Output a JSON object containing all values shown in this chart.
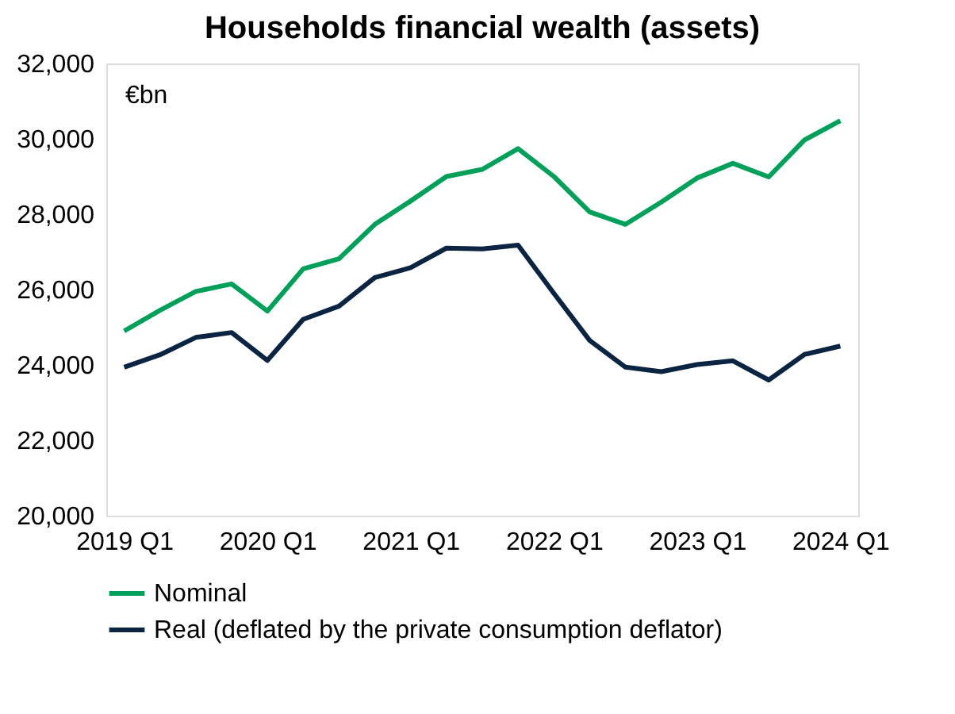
{
  "chart_data": {
    "type": "line",
    "title": "Households financial wealth (assets)",
    "ylabel": "€bn",
    "categories": [
      "2019 Q1",
      null,
      null,
      null,
      "2020 Q1",
      null,
      null,
      null,
      "2021 Q1",
      null,
      null,
      null,
      "2022 Q1",
      null,
      null,
      null,
      "2023 Q1",
      null,
      null,
      null,
      "2024 Q1"
    ],
    "series": [
      {
        "name": "Nominal",
        "color": "#00a05a",
        "values": [
          24900,
          25450,
          25950,
          26150,
          25430,
          26550,
          26820,
          27730,
          28350,
          29000,
          29190,
          29740,
          29000,
          28060,
          27730,
          28320,
          28960,
          29350,
          28990,
          29970,
          30480
        ]
      },
      {
        "name": "Real (deflated by the private consumption deflator)",
        "color": "#0a2442",
        "values": [
          23940,
          24270,
          24730,
          24860,
          24120,
          25210,
          25560,
          26320,
          26580,
          27100,
          27080,
          27180,
          25900,
          24650,
          23940,
          23820,
          24010,
          24110,
          23600,
          24280,
          24500
        ]
      }
    ],
    "ylim": [
      20000,
      32000
    ],
    "yticks": [
      {
        "value": 20000,
        "label": "20,000"
      },
      {
        "value": 22000,
        "label": "22,000"
      },
      {
        "value": 24000,
        "label": "24,000"
      },
      {
        "value": 26000,
        "label": "26,000"
      },
      {
        "value": 28000,
        "label": "28,000"
      },
      {
        "value": 30000,
        "label": "30,000"
      },
      {
        "value": 32000,
        "label": "32,000"
      }
    ],
    "grid": false,
    "legend": "bottom",
    "marker": "none",
    "line_style": "solid"
  }
}
